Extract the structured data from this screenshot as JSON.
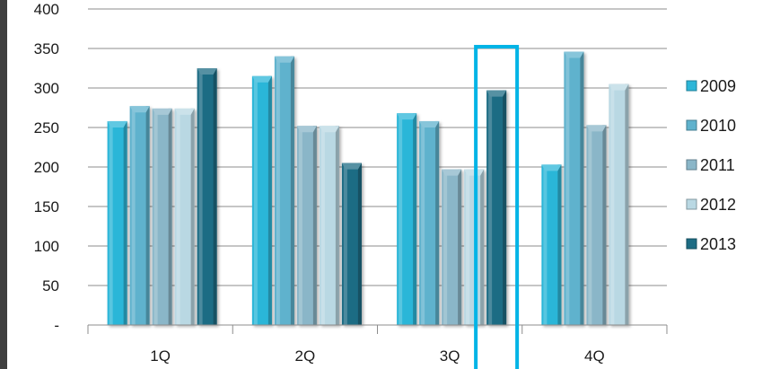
{
  "chart_data": {
    "type": "bar",
    "title": "",
    "xlabel": "",
    "ylabel": "",
    "categories": [
      "1Q",
      "2Q",
      "3Q",
      "4Q"
    ],
    "series": [
      {
        "name": "2009",
        "values": [
          258,
          315,
          268,
          203
        ],
        "color": "#2cb6d8"
      },
      {
        "name": "2010",
        "values": [
          277,
          340,
          258,
          346
        ],
        "color": "#5fb2cd"
      },
      {
        "name": "2011",
        "values": [
          274,
          252,
          197,
          253
        ],
        "color": "#8ab6c8"
      },
      {
        "name": "2012",
        "values": [
          274,
          252,
          197,
          305
        ],
        "color": "#b9d8e3"
      },
      {
        "name": "2013",
        "values": [
          325,
          205,
          297,
          null
        ],
        "color": "#1d6c84"
      }
    ],
    "ylim": [
      0,
      400
    ],
    "yticks": [
      0,
      50,
      100,
      150,
      200,
      250,
      300,
      350,
      400
    ],
    "ytick_labels": [
      "-",
      "50",
      "100",
      "150",
      "200",
      "250",
      "300",
      "350",
      "400"
    ],
    "grid": true,
    "legend": "right",
    "highlight": {
      "category": "3Q",
      "series": "2013",
      "color": "#00b4e6"
    }
  }
}
